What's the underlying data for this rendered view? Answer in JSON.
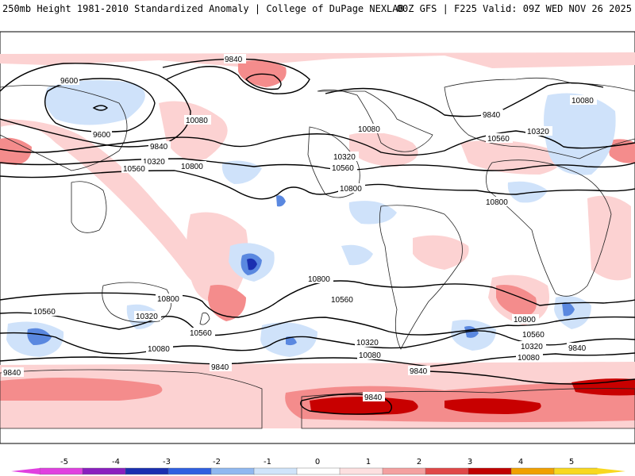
{
  "header": {
    "left": "250mb Height 1981-2010 Standardized Anomaly | College of DuPage NEXLAB",
    "right": "00Z GFS | F225 Valid: 09Z WED NOV 26 2025"
  },
  "contour_labels": {
    "c9840": "9840",
    "c9600": "9600",
    "c10080": "10080",
    "c10320": "10320",
    "c10560": "10560",
    "c10800": "10800"
  },
  "colorbar": {
    "ticks": [
      "-5",
      "-4",
      "-3",
      "-2",
      "-1",
      "0",
      "1",
      "2",
      "3",
      "4",
      "5"
    ],
    "colors": [
      "#e040e0",
      "#8a1fbf",
      "#1a2fb0",
      "#3060e0",
      "#90b8f0",
      "#d0e4fa",
      "#ffffff",
      "#fde0e0",
      "#f4a0a0",
      "#e04848",
      "#c00000",
      "#f0a000",
      "#f8d820"
    ]
  },
  "fill_colors": {
    "pos1": "#fcd2d2",
    "pos2": "#f48c8c",
    "pos3": "#d82424",
    "pos4": "#b80000",
    "neg1": "#cfe2fa",
    "neg2": "#6e9ce8",
    "neg3": "#2850d0"
  }
}
